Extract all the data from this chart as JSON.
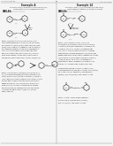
{
  "page_bg": "#f5f5f5",
  "text_color": "#2a2a2a",
  "gray": "#777777",
  "black": "#111111",
  "header_left": "US 8,802,698 B2",
  "header_center": "19",
  "header_right": "Aug. 12, 2014",
  "col_div": 64,
  "fig_w": 1.28,
  "fig_h": 1.65,
  "dpi": 100
}
